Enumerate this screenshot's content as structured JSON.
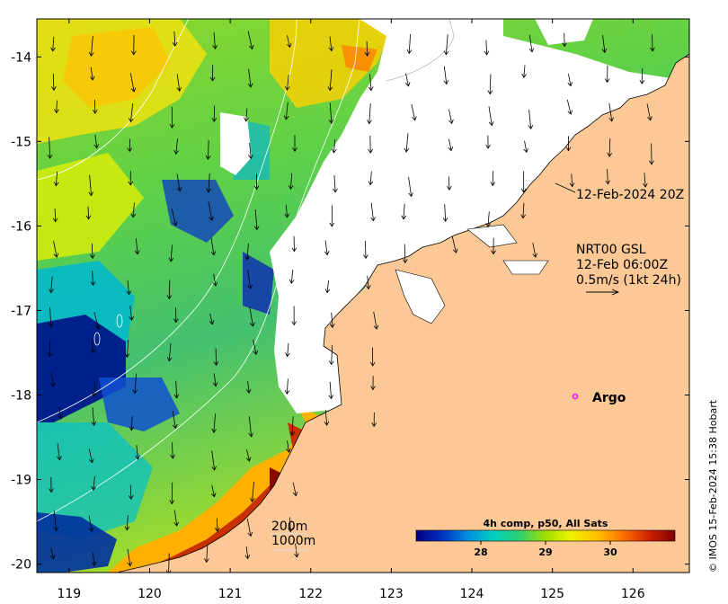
{
  "map": {
    "lon_range": [
      118.6,
      126.7
    ],
    "lat_range": [
      -20.1,
      -13.55
    ],
    "x_ticks": [
      {
        "value": 119,
        "label": "119"
      },
      {
        "value": 120,
        "label": "120"
      },
      {
        "value": 121,
        "label": "121"
      },
      {
        "value": 122,
        "label": "122"
      },
      {
        "value": 123,
        "label": "123"
      },
      {
        "value": 124,
        "label": "124"
      },
      {
        "value": 125,
        "label": "125"
      },
      {
        "value": 126,
        "label": "126"
      }
    ],
    "y_ticks": [
      {
        "value": -14,
        "label": "-14"
      },
      {
        "value": -15,
        "label": "-15"
      },
      {
        "value": -16,
        "label": "-16"
      },
      {
        "value": -17,
        "label": "-17"
      },
      {
        "value": -18,
        "label": "-18"
      },
      {
        "value": -19,
        "label": "-19"
      },
      {
        "value": -20,
        "label": "-20"
      }
    ],
    "land_color": "#fbc896",
    "no_data_color": "#ffffff"
  },
  "annotations": {
    "date_label": "12-Feb-2024 20Z",
    "current_line1": "NRT00 GSL",
    "current_line2": "12-Feb 06:00Z",
    "current_line3": "0.5m/s (1kt 24h)",
    "argo_label": "Argo",
    "argo_color": "#ff00ff",
    "isobath_200": "200m",
    "isobath_1000": "1000m"
  },
  "colorbar": {
    "title": "4h comp, p50, All Sats",
    "ticks": [
      {
        "value": 28,
        "label": "28"
      },
      {
        "value": 29,
        "label": "29"
      },
      {
        "value": 30,
        "label": "30"
      }
    ],
    "range": [
      27,
      31
    ],
    "colors": [
      "#00007f",
      "#0030c0",
      "#0090e0",
      "#00d0c0",
      "#30d070",
      "#a0e000",
      "#f0f000",
      "#ffc000",
      "#ff7000",
      "#d02000",
      "#7f0000"
    ]
  },
  "credit": "© IMOS 15-Feb-2024 15:38 Hobart"
}
